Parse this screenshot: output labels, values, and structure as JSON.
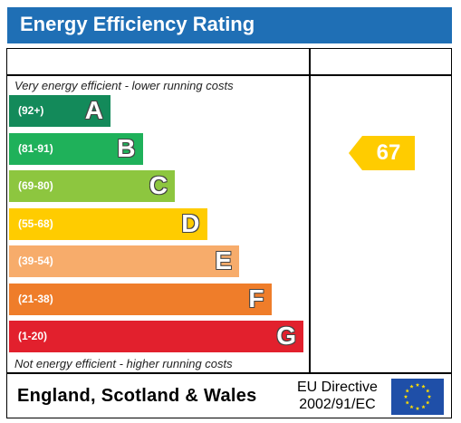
{
  "title": "Energy Efficiency Rating",
  "caption_top": "Very energy efficient - lower running costs",
  "caption_bottom": "Not energy efficient - higher running costs",
  "footer": {
    "country": "England, Scotland & Wales",
    "directive_line1": "EU Directive",
    "directive_line2": "2002/91/EC"
  },
  "chart_data": {
    "type": "bar",
    "categories": [
      "A",
      "B",
      "C",
      "D",
      "E",
      "F",
      "G"
    ],
    "bands": [
      {
        "letter": "A",
        "range": "(92+)",
        "color": "#138a5a"
      },
      {
        "letter": "B",
        "range": "(81-91)",
        "color": "#1fb15a"
      },
      {
        "letter": "C",
        "range": "(69-80)",
        "color": "#8dc63f"
      },
      {
        "letter": "D",
        "range": "(55-68)",
        "color": "#ffcc00"
      },
      {
        "letter": "E",
        "range": "(39-54)",
        "color": "#f7ac6b"
      },
      {
        "letter": "F",
        "range": "(21-38)",
        "color": "#ef7d2a"
      },
      {
        "letter": "G",
        "range": "(1-20)",
        "color": "#e2202d"
      }
    ],
    "current_rating": {
      "value": "67",
      "band": "D",
      "color": "#ffcc00"
    }
  }
}
